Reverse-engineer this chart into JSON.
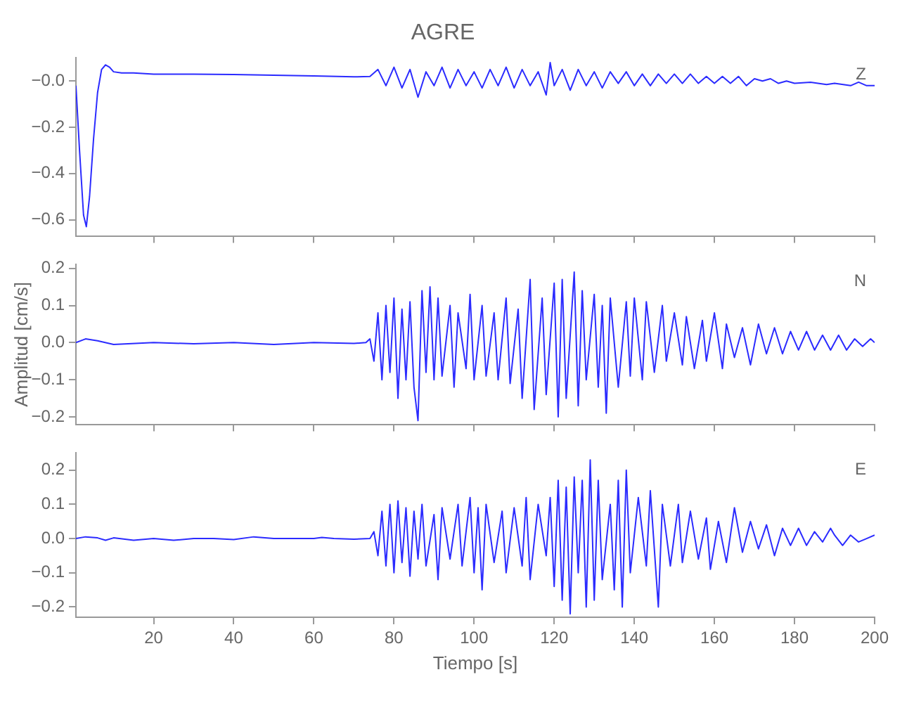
{
  "chart_data": [
    {
      "type": "line",
      "title": "AGRE",
      "tick_labels": "y",
      "grid": false,
      "marker": "none",
      "line_style": "solid",
      "annotations": [
        "Z"
      ],
      "xlim": [
        0.6,
        200
      ],
      "xticks": [
        20,
        40,
        60,
        80,
        100,
        120,
        140,
        160,
        180,
        200
      ],
      "ylim": [
        -0.67,
        0.1
      ],
      "yticks": [
        {
          "value": 0,
          "label": "−0.0"
        },
        {
          "value": -0.2,
          "label": "−0.2"
        },
        {
          "value": -0.4,
          "label": "−0.4"
        },
        {
          "value": -0.6,
          "label": "−0.6"
        }
      ],
      "x": [
        0.6,
        1.5,
        2.5,
        3.2,
        4,
        5,
        6,
        7,
        8,
        9,
        10,
        12,
        15,
        20,
        30,
        40,
        50,
        60,
        70,
        74,
        76,
        78,
        80,
        82,
        84,
        86,
        88,
        90,
        92,
        94,
        96,
        98,
        100,
        102,
        104,
        106,
        108,
        110,
        112,
        114,
        116,
        118,
        119,
        120,
        122,
        124,
        126,
        128,
        130,
        132,
        134,
        136,
        138,
        140,
        142,
        144,
        146,
        148,
        150,
        152,
        154,
        156,
        158,
        160,
        162,
        164,
        166,
        168,
        170,
        172,
        174,
        176,
        178,
        180,
        184,
        188,
        190,
        194,
        196,
        198,
        200
      ],
      "series": [
        {
          "color": "#2b2bff",
          "values": [
            -0.02,
            -0.3,
            -0.58,
            -0.63,
            -0.5,
            -0.25,
            -0.05,
            0.05,
            0.07,
            0.06,
            0.04,
            0.035,
            0.035,
            0.03,
            0.03,
            0.028,
            0.025,
            0.022,
            0.018,
            0.02,
            0.05,
            -0.02,
            0.06,
            -0.03,
            0.05,
            -0.07,
            0.04,
            -0.02,
            0.06,
            -0.03,
            0.05,
            -0.02,
            0.04,
            -0.03,
            0.05,
            -0.02,
            0.06,
            -0.03,
            0.05,
            -0.02,
            0.04,
            -0.06,
            0.08,
            -0.02,
            0.05,
            -0.04,
            0.05,
            -0.02,
            0.04,
            -0.03,
            0.04,
            -0.01,
            0.04,
            -0.02,
            0.03,
            -0.02,
            0.03,
            -0.01,
            0.03,
            -0.01,
            0.03,
            -0.01,
            0.02,
            -0.01,
            0.02,
            -0.01,
            0.02,
            -0.02,
            0.01,
            0.0,
            0.01,
            -0.01,
            0.0,
            -0.01,
            -0.005,
            -0.015,
            -0.01,
            -0.02,
            -0.005,
            -0.02,
            -0.02
          ]
        }
      ]
    },
    {
      "type": "line",
      "ylabel": "Amplitud [cm/s]",
      "tick_labels": "y",
      "grid": false,
      "marker": "none",
      "line_style": "solid",
      "annotations": [
        "N"
      ],
      "xlim": [
        0.6,
        200
      ],
      "xticks": [
        20,
        40,
        60,
        80,
        100,
        120,
        140,
        160,
        180,
        200
      ],
      "ylim": [
        -0.22,
        0.21
      ],
      "yticks": [
        {
          "value": 0.2,
          "label": "0.2"
        },
        {
          "value": 0.1,
          "label": "0.1"
        },
        {
          "value": 0,
          "label": "0.0"
        },
        {
          "value": -0.1,
          "label": "−0.1"
        },
        {
          "value": -0.2,
          "label": "−0.2"
        }
      ],
      "x": [
        0.6,
        3,
        6,
        10,
        20,
        30,
        40,
        50,
        60,
        70,
        73,
        74,
        75,
        76,
        77,
        78,
        79,
        80,
        81,
        82,
        83,
        84,
        85,
        86,
        87,
        88,
        89,
        90,
        91,
        92,
        94,
        95,
        96,
        98,
        99,
        100,
        102,
        103,
        105,
        106,
        108,
        109,
        111,
        112,
        114,
        115,
        117,
        118,
        120,
        121,
        122,
        123,
        125,
        126,
        127,
        128,
        130,
        131,
        132,
        133,
        134,
        136,
        138,
        139,
        140,
        142,
        143,
        145,
        147,
        148,
        150,
        152,
        153,
        155,
        157,
        158,
        160,
        162,
        163,
        165,
        167,
        169,
        171,
        173,
        175,
        177,
        179,
        181,
        183,
        185,
        187,
        189,
        191,
        193,
        195,
        197,
        199,
        200
      ],
      "series": [
        {
          "color": "#2b2bff",
          "values": [
            0.0,
            0.01,
            0.005,
            -0.005,
            0.0,
            -0.003,
            0.0,
            -0.005,
            0.0,
            -0.002,
            0.0,
            0.01,
            -0.05,
            0.08,
            -0.1,
            0.1,
            -0.08,
            0.12,
            -0.15,
            0.09,
            -0.1,
            0.11,
            -0.12,
            -0.21,
            0.14,
            -0.08,
            0.15,
            -0.1,
            0.12,
            -0.09,
            0.1,
            -0.12,
            0.08,
            -0.07,
            0.13,
            -0.1,
            0.1,
            -0.09,
            0.08,
            -0.1,
            0.12,
            -0.11,
            0.09,
            -0.15,
            0.17,
            -0.18,
            0.12,
            -0.14,
            0.16,
            -0.2,
            0.17,
            -0.15,
            0.19,
            -0.17,
            0.14,
            -0.1,
            0.13,
            -0.12,
            0.1,
            -0.19,
            0.12,
            -0.12,
            0.11,
            -0.09,
            0.12,
            -0.1,
            0.11,
            -0.08,
            0.1,
            -0.05,
            0.08,
            -0.06,
            0.07,
            -0.07,
            0.06,
            -0.05,
            0.08,
            -0.07,
            0.05,
            -0.04,
            0.04,
            -0.06,
            0.05,
            -0.03,
            0.04,
            -0.03,
            0.03,
            -0.02,
            0.03,
            -0.02,
            0.02,
            -0.02,
            0.02,
            -0.02,
            0.01,
            -0.01,
            0.01,
            0.0
          ]
        }
      ]
    },
    {
      "type": "line",
      "xlabel": "Tiempo [s]",
      "grid": false,
      "marker": "none",
      "line_style": "solid",
      "annotations": [
        "E"
      ],
      "xlim": [
        0.6,
        200
      ],
      "xticks": [
        20,
        40,
        60,
        80,
        100,
        120,
        140,
        160,
        180,
        200
      ],
      "ylim": [
        -0.23,
        0.25
      ],
      "yticks": [
        {
          "value": 0.2,
          "label": "0.2"
        },
        {
          "value": 0.1,
          "label": "0.1"
        },
        {
          "value": 0,
          "label": "0.0"
        },
        {
          "value": -0.1,
          "label": "−0.1"
        },
        {
          "value": -0.2,
          "label": "−0.2"
        }
      ],
      "x": [
        0.6,
        3,
        6,
        8,
        10,
        15,
        20,
        25,
        30,
        35,
        40,
        45,
        50,
        55,
        60,
        62,
        65,
        70,
        74,
        75,
        76,
        77,
        78,
        79,
        80,
        81,
        82,
        83,
        84,
        85,
        86,
        87,
        88,
        90,
        91,
        92,
        94,
        96,
        97,
        99,
        100,
        101,
        102,
        103,
        105,
        107,
        108,
        110,
        112,
        113,
        114,
        116,
        118,
        119,
        120,
        121,
        122,
        123,
        124,
        125,
        126,
        127,
        128,
        129,
        130,
        131,
        132,
        134,
        135,
        136,
        137,
        138,
        139,
        141,
        143,
        144,
        146,
        147,
        149,
        151,
        152,
        154,
        156,
        158,
        159,
        161,
        163,
        165,
        167,
        169,
        171,
        173,
        175,
        177,
        179,
        181,
        183,
        185,
        187,
        189,
        190,
        192,
        194,
        196,
        198,
        200
      ],
      "series": [
        {
          "color": "#2b2bff",
          "values": [
            0.0,
            0.005,
            0.002,
            -0.005,
            0.002,
            -0.005,
            0.0,
            -0.005,
            0.0,
            0.0,
            -0.003,
            0.005,
            0.0,
            0.0,
            0.0,
            0.003,
            0.0,
            -0.002,
            0.0,
            0.02,
            -0.05,
            0.08,
            -0.08,
            0.1,
            -0.1,
            0.11,
            -0.07,
            0.09,
            -0.11,
            0.08,
            -0.06,
            0.1,
            -0.08,
            0.07,
            -0.12,
            0.09,
            -0.06,
            0.1,
            -0.08,
            0.12,
            -0.1,
            0.09,
            -0.15,
            0.1,
            -0.07,
            0.08,
            -0.1,
            0.09,
            -0.08,
            0.12,
            -0.12,
            0.1,
            -0.05,
            0.12,
            -0.14,
            0.17,
            -0.18,
            0.15,
            -0.22,
            0.18,
            -0.1,
            0.17,
            -0.2,
            0.23,
            -0.18,
            0.17,
            -0.12,
            0.1,
            -0.15,
            0.17,
            -0.2,
            0.2,
            -0.1,
            0.12,
            -0.08,
            0.14,
            -0.2,
            0.1,
            -0.08,
            0.1,
            -0.07,
            0.08,
            -0.06,
            0.06,
            -0.09,
            0.05,
            -0.07,
            0.09,
            -0.04,
            0.05,
            -0.03,
            0.04,
            -0.05,
            0.03,
            -0.02,
            0.03,
            -0.02,
            0.02,
            -0.01,
            0.03,
            0.01,
            -0.02,
            0.01,
            -0.01,
            0.0,
            0.01
          ]
        }
      ]
    }
  ]
}
